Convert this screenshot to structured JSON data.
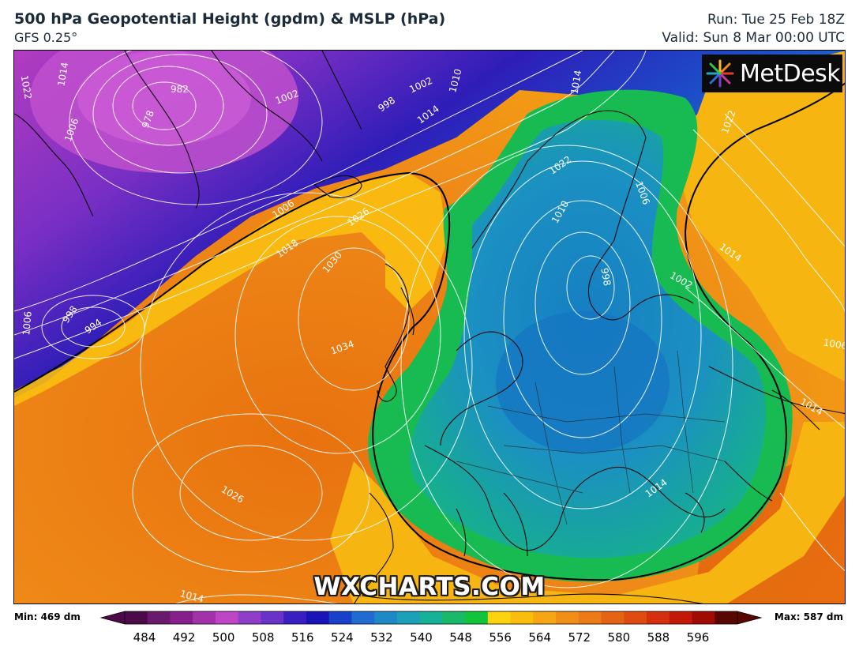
{
  "header": {
    "title": "500 hPa Geopotential Height (gpdm) & MSLP (hPa)",
    "model": "GFS 0.25°",
    "run": "Run: Tue 25 Feb 18Z",
    "valid": "Valid: Sun 8 Mar 00:00 UTC"
  },
  "logo": {
    "text": "MetDesk"
  },
  "watermark": "WXCHARTS.COM",
  "colorbar": {
    "min_label": "Min: 469 dm",
    "max_label": "Max: 587 dm",
    "ticks": [
      "484",
      "492",
      "500",
      "508",
      "516",
      "524",
      "532",
      "540",
      "548",
      "556",
      "564",
      "572",
      "580",
      "588",
      "596"
    ],
    "colors": [
      "#4c0a4a",
      "#6a1a6c",
      "#861f8c",
      "#a332aa",
      "#bf45c6",
      "#8e3ec8",
      "#6a33c8",
      "#3a1fc0",
      "#1a14b8",
      "#1840c8",
      "#1f6bd0",
      "#1f88c6",
      "#1aa0b8",
      "#16b196",
      "#1cb86a",
      "#12c43a",
      "#fdd20e",
      "#f9bd0c",
      "#f5a612",
      "#f08e18",
      "#ec7a16",
      "#e56414",
      "#df4c10",
      "#d4300c",
      "#c11808",
      "#a00c04",
      "#5a0600"
    ],
    "accent_colors": {
      "height_558": "#000000",
      "isobar": "#ffffff"
    }
  },
  "map": {
    "isobar_labels": [
      "998",
      "994",
      "982",
      "978",
      "1022",
      "1018",
      "1014",
      "1006",
      "1002",
      "994",
      "998",
      "1002",
      "1010",
      "1014",
      "1018",
      "1014",
      "1006",
      "1018",
      "1026",
      "1030",
      "1034",
      "1026",
      "1014",
      "998",
      "994",
      "1006",
      "1022",
      "1022",
      "1018",
      "1014",
      "1010",
      "998",
      "994",
      "1006",
      "1002",
      "1014",
      "1022",
      "1014",
      "1006",
      "1014",
      "1014"
    ]
  }
}
